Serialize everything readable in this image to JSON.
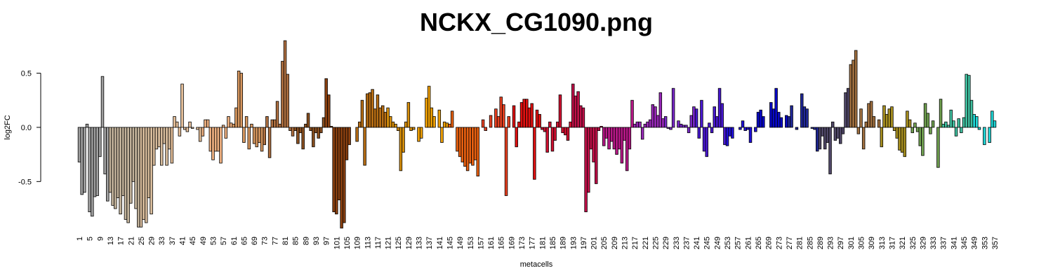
{
  "chart_data": {
    "type": "bar",
    "title": "NCKX_CG1090.png",
    "xlabel": "metacells",
    "ylabel": "log2FC",
    "ylim": [
      -0.95,
      0.82
    ],
    "yticks": [
      -0.5,
      0.0,
      0.5
    ],
    "categories": [
      "1",
      null,
      null,
      null,
      "5",
      null,
      null,
      null,
      "9",
      null,
      null,
      null,
      "13",
      null,
      null,
      null,
      "17",
      null,
      null,
      null,
      "21",
      null,
      null,
      null,
      "25",
      null,
      null,
      null,
      "29",
      null,
      null,
      null,
      "33",
      null,
      null,
      null,
      "37",
      null,
      null,
      null,
      "41",
      null,
      null,
      null,
      "45",
      null,
      null,
      null,
      "49",
      null,
      null,
      null,
      "53",
      null,
      null,
      null,
      "57",
      null,
      null,
      null,
      "61",
      null,
      null,
      null,
      "65",
      null,
      null,
      null,
      "69",
      null,
      null,
      null,
      "73",
      null,
      null,
      null,
      "77",
      null,
      null,
      null,
      "81",
      null,
      null,
      null,
      "85",
      null,
      null,
      null,
      "89",
      null,
      null,
      null,
      "93",
      null,
      null,
      null,
      "97",
      null,
      null,
      null,
      "101",
      null,
      null,
      null,
      "105",
      null,
      null,
      null,
      "109",
      null,
      null,
      null,
      "113",
      null,
      null,
      null,
      "117",
      null,
      null,
      null,
      "121",
      null,
      null,
      null,
      "125",
      null,
      null,
      null,
      "129",
      null,
      null,
      null,
      "133",
      null,
      null,
      null,
      "137",
      null,
      null,
      null,
      "141",
      null,
      null,
      null,
      "145",
      null,
      null,
      null,
      "149",
      null,
      null,
      null,
      "153",
      null,
      null,
      null,
      "157",
      null,
      null,
      null,
      "161",
      null,
      null,
      null,
      "165",
      null,
      null,
      null,
      "169",
      null,
      null,
      null,
      "173",
      null,
      null,
      null,
      "177",
      null,
      null,
      null,
      "181",
      null,
      null,
      null,
      "185",
      null,
      null,
      null,
      "189",
      null,
      null,
      null,
      "193",
      null,
      null,
      null,
      "197",
      null,
      null,
      null,
      "201",
      null,
      null,
      null,
      "205",
      null,
      null,
      null,
      "209",
      null,
      null,
      null,
      "213",
      null,
      null,
      null,
      "217",
      null,
      null,
      null,
      "221",
      null,
      null,
      null,
      "225",
      null,
      null,
      null,
      "229",
      null,
      null,
      null,
      "233",
      null,
      null,
      null,
      "237",
      null,
      null,
      null,
      "241",
      null,
      null,
      null,
      "245",
      null,
      null,
      null,
      "249",
      null,
      null,
      null,
      "253",
      null,
      null,
      null,
      "257",
      null,
      null,
      null,
      "261",
      null,
      null,
      null,
      "265",
      null,
      null,
      null,
      "269",
      null,
      null,
      null,
      "273",
      null,
      null,
      null,
      "277",
      null,
      null,
      null,
      "281",
      null,
      null,
      null,
      "285",
      null,
      null,
      null,
      "289",
      null,
      null,
      null,
      "293",
      null,
      null,
      null,
      "297",
      null,
      null,
      null,
      "301",
      null,
      null,
      null,
      "305",
      null,
      null,
      null,
      "309",
      null,
      null,
      null,
      "313",
      null,
      null,
      null,
      "317",
      null,
      null,
      null,
      "321",
      null,
      null,
      null,
      "325",
      null,
      null,
      null,
      "329",
      null,
      null,
      null,
      "333",
      null,
      null,
      null,
      "337",
      null,
      null,
      null,
      "341",
      null,
      null,
      null,
      "345",
      null,
      null,
      null,
      "349",
      null,
      null,
      null,
      "353",
      null,
      null,
      null,
      "357"
    ],
    "values": [
      -0.32,
      -0.62,
      -0.6,
      0.03,
      -0.78,
      -0.82,
      -0.64,
      -0.63,
      -0.27,
      0.47,
      -0.43,
      -0.68,
      -0.6,
      -0.72,
      -0.75,
      -0.65,
      -0.8,
      -0.63,
      -0.85,
      -0.88,
      -0.7,
      -0.5,
      -0.75,
      -0.92,
      -0.92,
      -0.85,
      -0.88,
      -0.65,
      -0.8,
      -0.35,
      -0.2,
      -0.18,
      -0.35,
      -0.15,
      -0.35,
      -0.2,
      -0.33,
      0.1,
      0.05,
      -0.08,
      0.4,
      -0.02,
      -0.04,
      0.05,
      -0.01,
      0.0,
      -0.02,
      -0.13,
      -0.08,
      0.07,
      0.07,
      -0.22,
      -0.3,
      -0.22,
      -0.22,
      -0.33,
      0.02,
      -0.1,
      0.1,
      0.04,
      0.03,
      0.18,
      0.52,
      0.5,
      -0.14,
      0.1,
      -0.2,
      0.03,
      -0.15,
      -0.18,
      -0.14,
      -0.22,
      -0.16,
      0.1,
      -0.28,
      0.07,
      0.07,
      0.24,
      0.03,
      0.61,
      0.8,
      0.49,
      -0.03,
      -0.08,
      -0.03,
      -0.15,
      -0.05,
      -0.2,
      0.03,
      0.13,
      -0.03,
      -0.18,
      -0.05,
      -0.1,
      -0.05,
      0.09,
      0.45,
      0.3,
      0.01,
      -0.78,
      -0.8,
      -0.67,
      -0.93,
      -0.88,
      -0.3,
      -0.16,
      0.0,
      0.0,
      -0.13,
      0.05,
      0.25,
      -0.35,
      0.31,
      0.32,
      0.35,
      0.17,
      0.3,
      0.18,
      0.2,
      0.14,
      0.18,
      0.1,
      0.05,
      0.03,
      -0.03,
      -0.4,
      -0.23,
      0.05,
      0.23,
      -0.03,
      -0.02,
      0.0,
      -0.13,
      -0.1,
      0.0,
      0.27,
      0.38,
      0.18,
      0.1,
      0.0,
      0.16,
      -0.14,
      0.05,
      0.04,
      0.03,
      0.15,
      0.0,
      -0.22,
      -0.27,
      -0.32,
      -0.36,
      -0.4,
      -0.33,
      -0.35,
      -0.3,
      -0.45,
      0.0,
      0.07,
      -0.03,
      0.0,
      0.11,
      0.0,
      0.17,
      0.1,
      0.28,
      0.21,
      -0.63,
      0.1,
      0.0,
      0.2,
      -0.18,
      0.05,
      0.23,
      0.26,
      0.26,
      0.18,
      0.22,
      -0.48,
      0.16,
      0.12,
      -0.02,
      -0.04,
      -0.23,
      0.05,
      -0.22,
      -0.12,
      0.05,
      0.3,
      -0.05,
      -0.07,
      -0.12,
      0.05,
      0.4,
      0.29,
      0.33,
      0.2,
      0.18,
      -0.78,
      -0.6,
      -0.2,
      -0.32,
      -0.52,
      -0.03,
      0.01,
      -0.17,
      -0.1,
      -0.2,
      -0.13,
      -0.2,
      -0.25,
      -0.2,
      -0.33,
      -0.12,
      -0.4,
      -0.2,
      0.25,
      0.03,
      0.05,
      0.05,
      -0.11,
      0.03,
      0.05,
      0.07,
      0.21,
      0.19,
      0.11,
      0.32,
      0.08,
      0.1,
      -0.01,
      -0.02,
      0.36,
      0.0,
      0.06,
      0.03,
      0.02,
      0.02,
      -0.05,
      0.11,
      0.19,
      0.17,
      -0.1,
      0.25,
      -0.22,
      -0.27,
      0.04,
      -0.05,
      0.19,
      0.1,
      0.36,
      0.22,
      -0.16,
      -0.17,
      -0.08,
      -0.1,
      0.0,
      0.0,
      -0.02,
      0.06,
      -0.03,
      -0.02,
      -0.14,
      0.0,
      -0.04,
      0.14,
      0.16,
      0.1,
      0.0,
      0.0,
      0.23,
      0.17,
      0.36,
      0.14,
      0.09,
      0.0,
      0.11,
      0.1,
      0.2,
      0.0,
      -0.02,
      0.0,
      0.31,
      0.19,
      0.17,
      0.0,
      -0.01,
      -0.02,
      -0.22,
      -0.2,
      -0.08,
      -0.2,
      -0.14,
      -0.43,
      0.05,
      -0.12,
      -0.1,
      -0.15,
      -0.06,
      0.32,
      0.36,
      0.58,
      0.62,
      0.71,
      -0.06,
      0.17,
      -0.2,
      0.05,
      0.22,
      0.24,
      0.1,
      0.0,
      0.07,
      -0.18,
      0.2,
      0.12,
      0.17,
      0.19,
      -0.03,
      -0.1,
      -0.21,
      -0.23,
      -0.27,
      0.15,
      0.07,
      -0.05,
      0.04,
      -0.04,
      -0.17,
      -0.26,
      0.22,
      0.13,
      -0.06,
      0.06,
      0.0,
      -0.37,
      0.26,
      0.03,
      0.05,
      0.02,
      0.16,
      0.06,
      -0.08,
      0.08,
      -0.05,
      0.09,
      0.49,
      0.48,
      0.25,
      0.12,
      0.1,
      -0.02,
      0.0,
      -0.16,
      0.0,
      -0.14,
      0.15,
      0.06
    ],
    "colors": [
      "#a0a0a0",
      "#a0a0a0",
      "#a0a0a0",
      "#a0a0a0",
      "#a0a0a0",
      "#a0a0a0",
      "#a0a0a0",
      "#a0a0a0",
      "#a0a0a0",
      "#a0a0a0",
      "#a0a0a0",
      "#a0a0a0",
      "#c4b49c",
      "#c4b49c",
      "#c4b49c",
      "#c4b49c",
      "#c4b49c",
      "#c4b49c",
      "#c4b49c",
      "#c4b49c",
      "#c4b49c",
      "#c4b49c",
      "#c4b49c",
      "#c4b49c",
      "#d8bc9c",
      "#d8bc9c",
      "#d8bc9c",
      "#d8bc9c",
      "#d8bc9c",
      "#d8bc9c",
      "#d8bc9c",
      "#d8bc9c",
      "#d8bc9c",
      "#d8bc9c",
      "#d8bc9c",
      "#d8bc9c",
      "#e6c09a",
      "#e6c09a",
      "#e6c09a",
      "#e6c09a",
      "#e6c09a",
      "#e6c09a",
      "#e6c09a",
      "#e6c09a",
      "#e6c09a",
      "#e6c09a",
      "#e6c09a",
      "#e6c09a",
      "#eeb080",
      "#eeb080",
      "#eeb080",
      "#eeb080",
      "#eeb080",
      "#eeb080",
      "#eeb080",
      "#eeb080",
      "#eeb080",
      "#eeb080",
      "#eeb080",
      "#eeb080",
      "#d89860",
      "#d89860",
      "#d89860",
      "#d89860",
      "#d89860",
      "#d89860",
      "#d89860",
      "#d89860",
      "#d89860",
      "#d89860",
      "#d89860",
      "#d89860",
      "#b07040",
      "#b07040",
      "#b07040",
      "#b07040",
      "#b07040",
      "#b07040",
      "#b07040",
      "#b07040",
      "#b07040",
      "#b07040",
      "#b07040",
      "#b07040",
      "#8a5020",
      "#8a5020",
      "#8a5020",
      "#8a5020",
      "#8a5020",
      "#8a5020",
      "#8a5020",
      "#8a5020",
      "#8a5020",
      "#8a5020",
      "#8a5020",
      "#8a5020",
      "#8a4010",
      "#8a4010",
      "#8a4010",
      "#8a4010",
      "#8a4010",
      "#8a4010",
      "#8a4010",
      "#8a4010",
      "#8a4010",
      "#8a4010",
      "#8a4010",
      "#8a4010",
      "#b86e14",
      "#b86e14",
      "#b86e14",
      "#b86e14",
      "#b86e14",
      "#b86e14",
      "#b86e14",
      "#b86e14",
      "#b86e14",
      "#b86e14",
      "#b86e14",
      "#b86e14",
      "#d8900c",
      "#d8900c",
      "#d8900c",
      "#d8900c",
      "#d8900c",
      "#d8900c",
      "#d8900c",
      "#d8900c",
      "#d8900c",
      "#d8900c",
      "#d8900c",
      "#d8900c",
      "#f0a000",
      "#f0a000",
      "#f0a000",
      "#f0a000",
      "#f0a000",
      "#f0a000",
      "#f0a000",
      "#f0a000",
      "#f0a000",
      "#f0a000",
      "#f0a000",
      "#f0a000",
      "#e86010",
      "#e86010",
      "#e86010",
      "#e86010",
      "#e86010",
      "#e86010",
      "#e86010",
      "#e86010",
      "#e86010",
      "#e86010",
      "#e86010",
      "#e86010",
      "#e84020",
      "#e84020",
      "#e84020",
      "#e84020",
      "#e84020",
      "#e84020",
      "#e84020",
      "#e84020",
      "#e84020",
      "#e84020",
      "#e84020",
      "#e84020",
      "#e01010",
      "#e01010",
      "#e01010",
      "#e01010",
      "#e01010",
      "#e01010",
      "#e01010",
      "#e01010",
      "#e01010",
      "#e01010",
      "#e01010",
      "#e01010",
      "#d01030",
      "#d01030",
      "#d01030",
      "#d01030",
      "#d01030",
      "#d01030",
      "#d01030",
      "#d01030",
      "#d01030",
      "#d01030",
      "#d01030",
      "#d01030",
      "#c01048",
      "#c01048",
      "#c01048",
      "#c01048",
      "#c01048",
      "#c01048",
      "#c01048",
      "#c01048",
      "#c01048",
      "#c01048",
      "#c01048",
      "#c01048",
      "#b81888",
      "#b81888",
      "#b81888",
      "#b81888",
      "#b81888",
      "#b81888",
      "#b81888",
      "#b81888",
      "#b81888",
      "#b81888",
      "#b81888",
      "#b81888",
      "#9828b8",
      "#9828b8",
      "#9828b8",
      "#9828b8",
      "#9828b8",
      "#9828b8",
      "#9828b8",
      "#9828b8",
      "#9828b8",
      "#9828b8",
      "#9828b8",
      "#9828b8",
      "#7828c8",
      "#7828c8",
      "#7828c8",
      "#7828c8",
      "#7828c8",
      "#7828c8",
      "#7828c8",
      "#7828c8",
      "#7828c8",
      "#7828c8",
      "#7828c8",
      "#7828c8",
      "#4818d0",
      "#4818d0",
      "#4818d0",
      "#4818d0",
      "#4818d0",
      "#4818d0",
      "#4818d0",
      "#4818d0",
      "#4818d0",
      "#4818d0",
      "#4818d0",
      "#4818d0",
      "#2010d8",
      "#2010d8",
      "#2010d8",
      "#2010d8",
      "#2010d8",
      "#2010d8",
      "#2010d8",
      "#2010d8",
      "#2010d8",
      "#2010d8",
      "#2010d8",
      "#2010d8",
      "#0808c8",
      "#0808c8",
      "#0808c8",
      "#0808c8",
      "#0808c8",
      "#0808c8",
      "#0808c8",
      "#0808c8",
      "#0808c8",
      "#0808c8",
      "#0808c8",
      "#0808c8",
      "#202898",
      "#202898",
      "#202898",
      "#202898",
      "#202898",
      "#202898",
      "#202898",
      "#202898",
      "#202898",
      "#202898",
      "#202898",
      "#202898",
      "#504868",
      "#504868",
      "#504868",
      "#504868",
      "#504868",
      "#504868",
      "#504868",
      "#504868",
      "#504868",
      "#504868",
      "#504868",
      "#504868",
      "#a07040",
      "#a07040",
      "#a07040",
      "#a07040",
      "#a07040",
      "#a07040",
      "#a07040",
      "#a07040",
      "#a07040",
      "#a07040",
      "#a07040",
      "#a07040",
      "#a89020",
      "#a89020",
      "#a89020",
      "#a89020",
      "#a89020",
      "#a89020",
      "#a89020",
      "#a89020",
      "#a89020",
      "#a89020",
      "#a89020",
      "#a89020",
      "#70a050",
      "#70a050",
      "#70a050",
      "#70a050",
      "#70a050",
      "#70a050",
      "#70a050",
      "#70a050",
      "#70a050",
      "#70a050",
      "#70a050",
      "#70a050",
      "#40c0a0",
      "#40c0a0",
      "#40c0a0",
      "#40c0a0",
      "#40c0a0",
      "#40c0a0",
      "#40c0a0",
      "#40c0a0",
      "#40c0a0",
      "#40c0a0",
      "#40c0a0",
      "#40c0a0",
      "#20d8d8",
      "#20d8d8",
      "#20d8d8",
      "#20d8d8",
      "#20d8d8",
      "#20d8d8",
      "#20d8d8",
      "#20d8d8",
      "#20d8d8"
    ]
  }
}
